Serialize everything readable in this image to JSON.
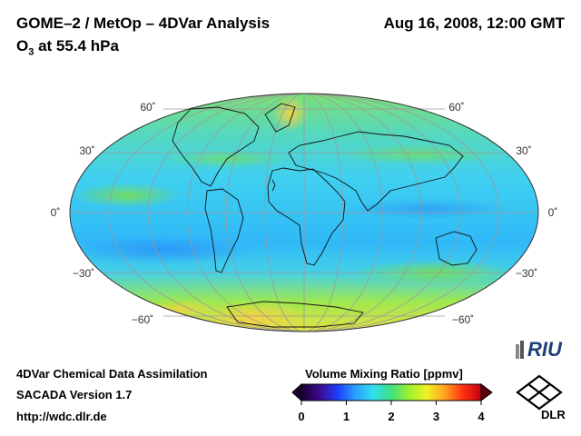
{
  "header": {
    "title": "GOME–2 / MetOp – 4DVar Analysis",
    "subtitle_main": "O",
    "subtitle_sub": "3",
    "subtitle_rest": " at 55.4 hPa",
    "datetime": "Aug 16, 2008, 12:00 GMT"
  },
  "map": {
    "projection": "Mollweide",
    "lat_labels": [
      "60˚",
      "30˚",
      "0˚",
      "−30˚",
      "−60˚"
    ]
  },
  "footer": {
    "line1": "4DVar Chemical Data Assimilation",
    "line2": "SACADA Version 1.7",
    "line3": "http://wdc.dlr.de"
  },
  "colorbar": {
    "title": "Volume Mixing Ratio [ppmv]",
    "ticks": [
      "0",
      "1",
      "2",
      "3",
      "4"
    ],
    "colors": [
      "#1a0030",
      "#3c0a8c",
      "#1e3cff",
      "#2aa0ff",
      "#30e0f0",
      "#40e080",
      "#a0f030",
      "#f0f020",
      "#ffa020",
      "#ff3010",
      "#c00010"
    ]
  },
  "logos": {
    "riu": "RIU",
    "dlr": "DLR"
  }
}
